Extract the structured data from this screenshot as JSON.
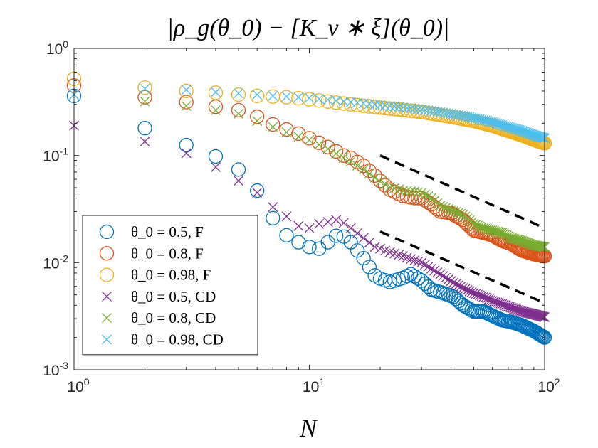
{
  "chart_data": {
    "type": "scatter",
    "title": "|ρ_g(θ_0) − [K_ν ∗ ξ](θ_0)|",
    "xlabel": "N",
    "ylabel": "",
    "xscale": "log",
    "yscale": "log",
    "xlim": [
      1,
      100
    ],
    "ylim": [
      0.001,
      1
    ],
    "x_ticks": [
      {
        "value": 1,
        "base": "10",
        "exp": "0"
      },
      {
        "value": 10,
        "base": "10",
        "exp": "1"
      },
      {
        "value": 100,
        "base": "10",
        "exp": "2"
      }
    ],
    "y_ticks": [
      {
        "value": 1,
        "base": "10",
        "exp": "0"
      },
      {
        "value": 0.1,
        "base": "10",
        "exp": "-1"
      },
      {
        "value": 0.01,
        "base": "10",
        "exp": "-2"
      },
      {
        "value": 0.001,
        "base": "10",
        "exp": "-3"
      }
    ],
    "grid": false,
    "legend_position": "bottom-left",
    "series": [
      {
        "name": "θ_0 = 0.5, F",
        "marker": "circle",
        "color": "#0072BD",
        "anchors": [
          [
            1,
            0.36
          ],
          [
            2,
            0.18
          ],
          [
            3,
            0.125
          ],
          [
            4,
            0.098
          ],
          [
            5,
            0.074
          ],
          [
            6,
            0.047
          ],
          [
            7,
            0.026
          ],
          [
            8,
            0.018
          ],
          [
            9,
            0.0155
          ],
          [
            10,
            0.014
          ],
          [
            11,
            0.0135
          ],
          [
            12,
            0.0155
          ],
          [
            13,
            0.0178
          ],
          [
            14,
            0.0175
          ],
          [
            15,
            0.0155
          ],
          [
            17,
            0.011
          ],
          [
            19,
            0.0076
          ],
          [
            20,
            0.0071
          ],
          [
            22,
            0.0066
          ],
          [
            25,
            0.0072
          ],
          [
            27,
            0.0078
          ],
          [
            30,
            0.0068
          ],
          [
            33,
            0.0056
          ],
          [
            37,
            0.0052
          ],
          [
            41,
            0.0048
          ],
          [
            45,
            0.004
          ],
          [
            50,
            0.0035
          ],
          [
            55,
            0.0035
          ],
          [
            60,
            0.0032
          ],
          [
            66,
            0.0029
          ],
          [
            72,
            0.0028
          ],
          [
            80,
            0.0026
          ],
          [
            90,
            0.0023
          ],
          [
            100,
            0.002
          ]
        ]
      },
      {
        "name": "θ_0 = 0.8, F",
        "marker": "circle",
        "color": "#D95319",
        "anchors": [
          [
            1,
            0.45
          ],
          [
            2,
            0.35
          ],
          [
            3,
            0.315
          ],
          [
            4,
            0.285
          ],
          [
            5,
            0.265
          ],
          [
            6,
            0.23
          ],
          [
            7,
            0.195
          ],
          [
            8,
            0.175
          ],
          [
            9,
            0.16
          ],
          [
            10,
            0.145
          ],
          [
            12,
            0.12
          ],
          [
            14,
            0.1
          ],
          [
            15,
            0.095
          ],
          [
            17,
            0.08
          ],
          [
            19,
            0.065
          ],
          [
            20,
            0.058
          ],
          [
            22,
            0.048
          ],
          [
            25,
            0.042
          ],
          [
            28,
            0.04
          ],
          [
            30,
            0.04
          ],
          [
            33,
            0.035
          ],
          [
            36,
            0.03
          ],
          [
            40,
            0.029
          ],
          [
            45,
            0.025
          ],
          [
            50,
            0.02
          ],
          [
            55,
            0.019
          ],
          [
            60,
            0.018
          ],
          [
            66,
            0.016
          ],
          [
            72,
            0.015
          ],
          [
            80,
            0.013
          ],
          [
            90,
            0.012
          ],
          [
            100,
            0.0115
          ]
        ]
      },
      {
        "name": "θ_0 = 0.98, F",
        "marker": "circle",
        "color": "#EDB120",
        "anchors": [
          [
            1,
            0.52
          ],
          [
            2,
            0.43
          ],
          [
            3,
            0.4
          ],
          [
            4,
            0.385
          ],
          [
            5,
            0.37
          ],
          [
            6,
            0.36
          ],
          [
            7,
            0.355
          ],
          [
            8,
            0.35
          ],
          [
            10,
            0.335
          ],
          [
            15,
            0.3
          ],
          [
            20,
            0.28
          ],
          [
            30,
            0.255
          ],
          [
            40,
            0.23
          ],
          [
            50,
            0.21
          ],
          [
            60,
            0.19
          ],
          [
            70,
            0.17
          ],
          [
            80,
            0.155
          ],
          [
            90,
            0.14
          ],
          [
            100,
            0.13
          ]
        ]
      },
      {
        "name": "θ_0 = 0.5, CD",
        "marker": "x",
        "color": "#7E2F8E",
        "anchors": [
          [
            1,
            0.19
          ],
          [
            2,
            0.135
          ],
          [
            3,
            0.105
          ],
          [
            4,
            0.078
          ],
          [
            5,
            0.058
          ],
          [
            6,
            0.045
          ],
          [
            7,
            0.033
          ],
          [
            8,
            0.027
          ],
          [
            9,
            0.022
          ],
          [
            10,
            0.021
          ],
          [
            11,
            0.023
          ],
          [
            12,
            0.024
          ],
          [
            13,
            0.025
          ],
          [
            14,
            0.0235
          ],
          [
            15,
            0.021
          ],
          [
            17,
            0.017
          ],
          [
            19,
            0.014
          ],
          [
            20,
            0.0135
          ],
          [
            22,
            0.0125
          ],
          [
            25,
            0.0115
          ],
          [
            28,
            0.0105
          ],
          [
            30,
            0.01
          ],
          [
            33,
            0.0088
          ],
          [
            37,
            0.0075
          ],
          [
            41,
            0.0065
          ],
          [
            45,
            0.0058
          ],
          [
            50,
            0.0052
          ],
          [
            55,
            0.0048
          ],
          [
            60,
            0.0044
          ],
          [
            66,
            0.0041
          ],
          [
            72,
            0.0038
          ],
          [
            80,
            0.0035
          ],
          [
            90,
            0.0033
          ],
          [
            100,
            0.0031
          ]
        ]
      },
      {
        "name": "θ_0 = 0.8, CD",
        "marker": "x",
        "color": "#77AC30",
        "anchors": [
          [
            1,
            0.37
          ],
          [
            2,
            0.32
          ],
          [
            3,
            0.29
          ],
          [
            4,
            0.265
          ],
          [
            5,
            0.245
          ],
          [
            6,
            0.21
          ],
          [
            7,
            0.185
          ],
          [
            8,
            0.165
          ],
          [
            9,
            0.15
          ],
          [
            10,
            0.14
          ],
          [
            12,
            0.115
          ],
          [
            14,
            0.095
          ],
          [
            15,
            0.088
          ],
          [
            17,
            0.074
          ],
          [
            19,
            0.062
          ],
          [
            20,
            0.057
          ],
          [
            22,
            0.051
          ],
          [
            25,
            0.047
          ],
          [
            28,
            0.046
          ],
          [
            30,
            0.045
          ],
          [
            33,
            0.04
          ],
          [
            36,
            0.034
          ],
          [
            40,
            0.031
          ],
          [
            45,
            0.028
          ],
          [
            50,
            0.023
          ],
          [
            55,
            0.021
          ],
          [
            60,
            0.02
          ],
          [
            66,
            0.019
          ],
          [
            72,
            0.017
          ],
          [
            80,
            0.016
          ],
          [
            90,
            0.0145
          ],
          [
            100,
            0.014
          ]
        ]
      },
      {
        "name": "θ_0 = 0.98, CD",
        "marker": "x",
        "color": "#4DBEEE",
        "anchors": [
          [
            1,
            0.37
          ],
          [
            2,
            0.42
          ],
          [
            3,
            0.41
          ],
          [
            4,
            0.39
          ],
          [
            5,
            0.38
          ],
          [
            6,
            0.37
          ],
          [
            7,
            0.36
          ],
          [
            8,
            0.355
          ],
          [
            10,
            0.345
          ],
          [
            15,
            0.315
          ],
          [
            20,
            0.295
          ],
          [
            30,
            0.27
          ],
          [
            40,
            0.245
          ],
          [
            50,
            0.225
          ],
          [
            60,
            0.205
          ],
          [
            70,
            0.185
          ],
          [
            80,
            0.17
          ],
          [
            90,
            0.155
          ],
          [
            100,
            0.145
          ]
        ]
      }
    ],
    "reference_lines": [
      {
        "style": "dashed",
        "color": "#000000",
        "points": [
          [
            20,
            0.1
          ],
          [
            100,
            0.021
          ]
        ]
      },
      {
        "style": "dashed",
        "color": "#000000",
        "points": [
          [
            20,
            0.0195
          ],
          [
            100,
            0.0042
          ]
        ]
      }
    ]
  }
}
